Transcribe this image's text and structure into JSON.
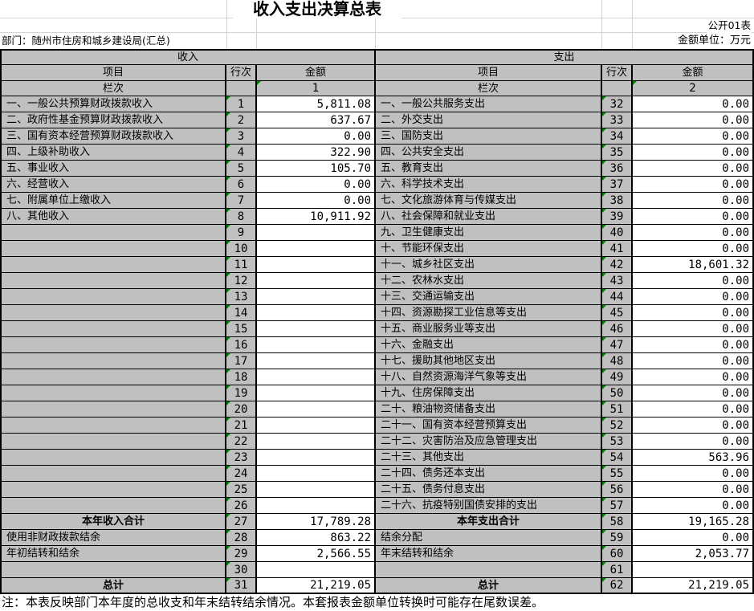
{
  "meta": {
    "title": "收入支出决算总表",
    "sheet_label": "公开01表",
    "department": "部门：随州市住房和城乡建设局(汇总)",
    "unit": "金额单位：万元",
    "note": "注：本表反映部门本年度的总收支和年末结转结余情况。本套报表金额单位转换时可能存在尾数误差。"
  },
  "headers": {
    "income": "收入",
    "expenditure": "支出",
    "item": "项目",
    "row_no": "行次",
    "amount": "金额",
    "column_label": "栏次",
    "income_col_no": "1",
    "expenditure_col_no": "2"
  },
  "colors": {
    "cell_gray": "#c0c0c0",
    "cell_white": "#ffffff",
    "border_black": "#000000",
    "gridline_gray": "#d4d4d4",
    "error_indicator_green": "#008000"
  },
  "icons": {
    "error_indicator": "green corner triangle (number-stored-as-text marker)"
  },
  "rows": [
    {
      "l": "一、一般公共预算财政拨款收入",
      "ln": "1",
      "la": "5,811.08",
      "r": "一、一般公共服务支出",
      "rn": "32",
      "ra": "0.00",
      "lc": false,
      "rc": false
    },
    {
      "l": "二、政府性基金预算财政拨款收入",
      "ln": "2",
      "la": "637.67",
      "r": "二、外交支出",
      "rn": "33",
      "ra": "0.00",
      "lc": false,
      "rc": false
    },
    {
      "l": "三、国有资本经营预算财政拨款收入",
      "ln": "3",
      "la": "0.00",
      "r": "三、国防支出",
      "rn": "34",
      "ra": "0.00",
      "lc": false,
      "rc": false
    },
    {
      "l": "四、上级补助收入",
      "ln": "4",
      "la": "322.90",
      "r": "四、公共安全支出",
      "rn": "35",
      "ra": "0.00",
      "lc": false,
      "rc": false
    },
    {
      "l": "五、事业收入",
      "ln": "5",
      "la": "105.70",
      "r": "五、教育支出",
      "rn": "36",
      "ra": "0.00",
      "lc": false,
      "rc": false
    },
    {
      "l": "六、经营收入",
      "ln": "6",
      "la": "0.00",
      "r": "六、科学技术支出",
      "rn": "37",
      "ra": "0.00",
      "lc": false,
      "rc": false
    },
    {
      "l": "七、附属单位上缴收入",
      "ln": "7",
      "la": "0.00",
      "r": "七、文化旅游体育与传媒支出",
      "rn": "38",
      "ra": "0.00",
      "lc": false,
      "rc": false
    },
    {
      "l": "八、其他收入",
      "ln": "8",
      "la": "10,911.92",
      "r": "八、社会保障和就业支出",
      "rn": "39",
      "ra": "0.00",
      "lc": false,
      "rc": false
    },
    {
      "l": "",
      "ln": "9",
      "la": "",
      "r": "九、卫生健康支出",
      "rn": "40",
      "ra": "0.00",
      "lc": false,
      "rc": false
    },
    {
      "l": "",
      "ln": "10",
      "la": "",
      "r": "十、节能环保支出",
      "rn": "41",
      "ra": "0.00",
      "lc": false,
      "rc": false
    },
    {
      "l": "",
      "ln": "11",
      "la": "",
      "r": "十一、城乡社区支出",
      "rn": "42",
      "ra": "18,601.32",
      "lc": false,
      "rc": false
    },
    {
      "l": "",
      "ln": "12",
      "la": "",
      "r": "十二、农林水支出",
      "rn": "43",
      "ra": "0.00",
      "lc": false,
      "rc": false
    },
    {
      "l": "",
      "ln": "13",
      "la": "",
      "r": "十三、交通运输支出",
      "rn": "44",
      "ra": "0.00",
      "lc": false,
      "rc": false
    },
    {
      "l": "",
      "ln": "14",
      "la": "",
      "r": "十四、资源勘探工业信息等支出",
      "rn": "45",
      "ra": "0.00",
      "lc": false,
      "rc": false
    },
    {
      "l": "",
      "ln": "15",
      "la": "",
      "r": "十五、商业服务业等支出",
      "rn": "46",
      "ra": "0.00",
      "lc": false,
      "rc": false
    },
    {
      "l": "",
      "ln": "16",
      "la": "",
      "r": "十六、金融支出",
      "rn": "47",
      "ra": "0.00",
      "lc": false,
      "rc": false
    },
    {
      "l": "",
      "ln": "17",
      "la": "",
      "r": "十七、援助其他地区支出",
      "rn": "48",
      "ra": "0.00",
      "lc": false,
      "rc": false
    },
    {
      "l": "",
      "ln": "18",
      "la": "",
      "r": "十八、自然资源海洋气象等支出",
      "rn": "49",
      "ra": "0.00",
      "lc": false,
      "rc": false
    },
    {
      "l": "",
      "ln": "19",
      "la": "",
      "r": "十九、住房保障支出",
      "rn": "50",
      "ra": "0.00",
      "lc": false,
      "rc": false
    },
    {
      "l": "",
      "ln": "20",
      "la": "",
      "r": "二十、粮油物资储备支出",
      "rn": "51",
      "ra": "0.00",
      "lc": false,
      "rc": false
    },
    {
      "l": "",
      "ln": "21",
      "la": "",
      "r": "二十一、国有资本经营预算支出",
      "rn": "52",
      "ra": "0.00",
      "lc": false,
      "rc": false
    },
    {
      "l": "",
      "ln": "22",
      "la": "",
      "r": "二十二、灾害防治及应急管理支出",
      "rn": "53",
      "ra": "0.00",
      "lc": false,
      "rc": false
    },
    {
      "l": "",
      "ln": "23",
      "la": "",
      "r": "二十三、其他支出",
      "rn": "54",
      "ra": "563.96",
      "lc": false,
      "rc": false
    },
    {
      "l": "",
      "ln": "24",
      "la": "",
      "r": "二十四、债务还本支出",
      "rn": "55",
      "ra": "0.00",
      "lc": false,
      "rc": false
    },
    {
      "l": "",
      "ln": "25",
      "la": "",
      "r": "二十五、债务付息支出",
      "rn": "56",
      "ra": "0.00",
      "lc": false,
      "rc": false
    },
    {
      "l": "",
      "ln": "26",
      "la": "",
      "r": "二十六、抗疫特别国债安排的支出",
      "rn": "57",
      "ra": "0.00",
      "lc": false,
      "rc": false
    },
    {
      "l": "本年收入合计",
      "ln": "27",
      "la": "17,789.28",
      "r": "本年支出合计",
      "rn": "58",
      "ra": "19,165.28",
      "lc": true,
      "rc": true
    },
    {
      "l": "使用非财政拨款结余",
      "ln": "28",
      "la": "863.22",
      "r": "结余分配",
      "rn": "59",
      "ra": "0.00",
      "lc": false,
      "rc": false
    },
    {
      "l": "年初结转和结余",
      "ln": "29",
      "la": "2,566.55",
      "r": "年末结转和结余",
      "rn": "60",
      "ra": "2,053.77",
      "lc": false,
      "rc": false
    },
    {
      "l": "",
      "ln": "30",
      "la": "",
      "r": "",
      "rn": "61",
      "ra": "",
      "lc": false,
      "rc": false
    },
    {
      "l": "总计",
      "ln": "31",
      "la": "21,219.05",
      "r": "总计",
      "rn": "62",
      "ra": "21,219.05",
      "lc": true,
      "rc": true
    }
  ]
}
